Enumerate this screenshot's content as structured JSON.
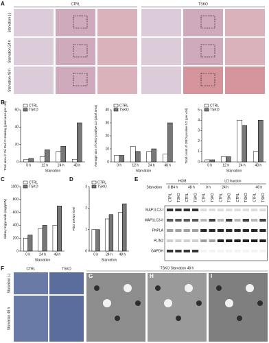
{
  "figure": {
    "A": {
      "label": "A",
      "groups": [
        "CTRL",
        "TSKO"
      ],
      "rows": [
        "Starvation (-)",
        "Starvation 24 h",
        "Starvation 48 h"
      ]
    },
    "B": {
      "label": "B"
    },
    "C": {
      "label": "C"
    },
    "D": {
      "label": "D"
    },
    "E": {
      "label": "E",
      "fractions": [
        "HOM",
        "LD fraction"
      ],
      "row_label": "Starvation",
      "times": [
        "0 h",
        "24 h",
        "48 h",
        "0 h",
        "24 h",
        "48 h"
      ],
      "lanes": [
        "CTRL",
        "TSKO",
        "CTRL",
        "TSKO",
        "CTRL",
        "TSKO",
        "CTRL",
        "TSKO",
        "CTRL",
        "TSKO",
        "CTRL",
        "TSKO"
      ],
      "proteins": [
        "MAP1LC3-I",
        "MAP1LC3-II",
        "PNPLA",
        "PLIN2",
        "GAPDH"
      ]
    },
    "F": {
      "label": "F",
      "groups": [
        "CTRL",
        "TSKO"
      ],
      "rows": [
        "Starvation (-)",
        "Starvation 48 h"
      ]
    },
    "G": {
      "label": "G",
      "title": "TSKO Starvation 48 h"
    },
    "H": {
      "label": "H"
    },
    "I": {
      "label": "I"
    }
  },
  "chart_data": [
    {
      "type": "bar",
      "y_label": "Total area of Oil Red O staining (pixel area per cell)",
      "x_label": "Starvation",
      "categories": [
        "0 h",
        "12 h",
        "24 h",
        "48 h"
      ],
      "series": [
        {
          "name": "CTRL",
          "color": "#ffffff",
          "values": [
            3,
            6,
            12,
            3
          ]
        },
        {
          "name": "TSKO",
          "color": "#777777",
          "values": [
            4,
            14,
            18,
            45
          ]
        }
      ],
      "ylim": [
        0,
        60
      ],
      "yticks": [
        0,
        20,
        40,
        60
      ]
    },
    {
      "type": "bar",
      "y_label": "Average size of ORO-positive LD (pixel area)",
      "x_label": "Starvation",
      "categories": [
        "0 h",
        "12 h",
        "24 h",
        "48 h"
      ],
      "series": [
        {
          "name": "CTRL",
          "color": "#ffffff",
          "values": [
            5,
            12,
            8,
            6
          ]
        },
        {
          "name": "TSKO",
          "color": "#777777",
          "values": [
            5,
            8,
            10,
            30
          ]
        }
      ],
      "ylim": [
        0,
        40
      ],
      "yticks": [
        0,
        10,
        20,
        30,
        40
      ]
    },
    {
      "type": "bar",
      "y_label": "Total count of ORO-positive LD (per cell)",
      "x_label": "Starvation",
      "categories": [
        "0 h",
        "12 h",
        "24 h",
        "48 h"
      ],
      "series": [
        {
          "name": "CTRL",
          "color": "#ffffff",
          "values": [
            0.2,
            0.5,
            4,
            1
          ]
        },
        {
          "name": "TSKO",
          "color": "#777777",
          "values": [
            0.2,
            0.5,
            3.5,
            4
          ]
        }
      ],
      "ylim": [
        0,
        5
      ],
      "yticks": [
        0,
        1,
        2,
        3,
        4,
        5
      ]
    },
    {
      "type": "bar",
      "y_label": "Kidney triglyceride (mg/gKW)",
      "x_label": "Starvation",
      "categories": [
        "0 h",
        "24 h",
        "48 h"
      ],
      "series": [
        {
          "name": "CTRL",
          "color": "#ffffff",
          "values": [
            200,
            350,
            400
          ]
        },
        {
          "name": "TSKO",
          "color": "#777777",
          "values": [
            250,
            400,
            700
          ]
        }
      ],
      "ylim": [
        0,
        1000
      ],
      "yticks": [
        0,
        200,
        400,
        600,
        800,
        1000
      ]
    },
    {
      "type": "bar",
      "y_label": "Plin2 mRNA level",
      "x_label": "Starvation",
      "categories": [
        "0 h",
        "24 h",
        "48 h"
      ],
      "series": [
        {
          "name": "CTRL",
          "color": "#ffffff",
          "values": [
            1,
            1.5,
            1.8
          ]
        },
        {
          "name": "TSKO",
          "color": "#777777",
          "values": [
            1,
            1.7,
            2.2
          ]
        }
      ],
      "ylim": [
        0,
        3
      ],
      "yticks": [
        0,
        1,
        2,
        3
      ]
    }
  ]
}
